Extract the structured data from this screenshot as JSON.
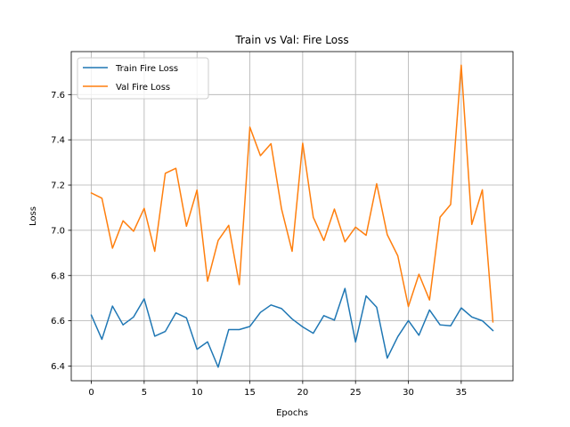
{
  "chart_data": {
    "type": "line",
    "title": "Train vs Val: Fire Loss",
    "xlabel": "Epochs",
    "ylabel": "Loss",
    "xlim": [
      -1.9,
      39.9
    ],
    "ylim": [
      6.335,
      7.79
    ],
    "x_ticks": [
      0,
      5,
      10,
      15,
      20,
      25,
      30,
      35
    ],
    "y_ticks": [
      6.4,
      6.6,
      6.8,
      7.0,
      7.2,
      7.4,
      7.6
    ],
    "grid": true,
    "legend_position": "upper-left",
    "x": [
      0,
      1,
      2,
      3,
      4,
      5,
      6,
      7,
      8,
      9,
      10,
      11,
      12,
      13,
      14,
      15,
      16,
      17,
      18,
      19,
      20,
      21,
      22,
      23,
      24,
      25,
      26,
      27,
      28,
      29,
      30,
      31,
      32,
      33,
      34,
      35,
      36,
      37,
      38
    ],
    "series": [
      {
        "name": "Train Fire Loss",
        "color": "#1f77b4",
        "values": [
          6.625,
          6.518,
          6.665,
          6.582,
          6.617,
          6.697,
          6.532,
          6.553,
          6.635,
          6.613,
          6.474,
          6.507,
          6.395,
          6.561,
          6.561,
          6.575,
          6.637,
          6.67,
          6.654,
          6.608,
          6.573,
          6.545,
          6.623,
          6.603,
          6.743,
          6.506,
          6.71,
          6.66,
          6.435,
          6.53,
          6.601,
          6.536,
          6.648,
          6.582,
          6.578,
          6.657,
          6.617,
          6.6,
          6.557
        ]
      },
      {
        "name": "Val Fire Loss",
        "color": "#ff7f0e",
        "values": [
          7.165,
          7.142,
          6.921,
          7.042,
          6.996,
          7.097,
          6.907,
          7.252,
          7.274,
          7.018,
          7.178,
          6.775,
          6.955,
          7.022,
          6.76,
          7.456,
          7.33,
          7.383,
          7.094,
          6.907,
          7.385,
          7.058,
          6.955,
          7.094,
          6.949,
          7.014,
          6.978,
          7.206,
          6.981,
          6.887,
          6.663,
          6.806,
          6.692,
          7.058,
          7.114,
          7.73,
          7.026,
          7.179,
          6.595
        ]
      }
    ]
  }
}
